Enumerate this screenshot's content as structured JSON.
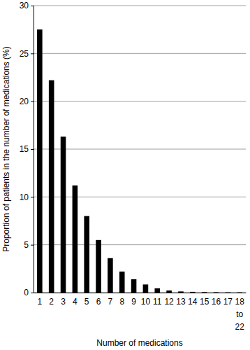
{
  "chart_data": {
    "type": "bar",
    "x_label": "Number of medications",
    "y_label": "Proportion of patients in the number of medications (%)",
    "categories": [
      "1",
      "2",
      "3",
      "4",
      "5",
      "6",
      "7",
      "8",
      "9",
      "10",
      "11",
      "12",
      "13",
      "14",
      "15",
      "16",
      "17",
      "18 to 22"
    ],
    "values": [
      27.5,
      22.2,
      16.3,
      11.2,
      8.0,
      5.5,
      3.6,
      2.2,
      1.4,
      0.85,
      0.45,
      0.22,
      0.12,
      0.08,
      0.05,
      0.04,
      0.03,
      0.03
    ],
    "color": "#000000",
    "ylim": [
      0,
      30
    ],
    "yticks": [
      0,
      5,
      10,
      15,
      20,
      25,
      30
    ],
    "grid": true
  }
}
